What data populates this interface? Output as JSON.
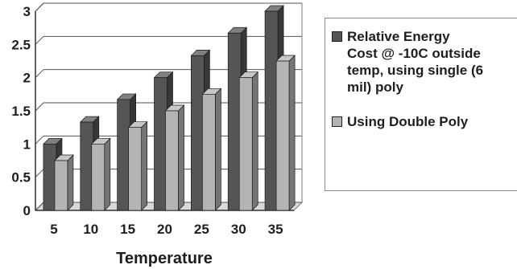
{
  "chart_data": {
    "type": "bar",
    "title": "",
    "xlabel": "Temperature",
    "ylabel": "",
    "categories": [
      "5",
      "10",
      "15",
      "20",
      "25",
      "30",
      "35"
    ],
    "yticks": [
      "0",
      "0.5",
      "1",
      "1.5",
      "2",
      "2.5",
      "3"
    ],
    "ylim": [
      0,
      3
    ],
    "grid": true,
    "legend_position": "right",
    "series": [
      {
        "name": "Relative Energy Cost @ -10C outside temp, using single (6 mil) poly",
        "values": [
          1.0,
          1.33,
          1.67,
          2.0,
          2.33,
          2.67,
          3.0
        ],
        "color": "#555555"
      },
      {
        "name": "Using Double Poly",
        "values": [
          0.75,
          1.0,
          1.25,
          1.5,
          1.75,
          2.0,
          2.25
        ],
        "color": "#b4b4b4"
      }
    ]
  },
  "legend": {
    "entries": [
      {
        "label": "Relative Energy\nCost @ -10C outside\ntemp, using single (6\nmil) poly",
        "color": "#555555"
      },
      {
        "label": "Using Double Poly",
        "color": "#b4b4b4"
      }
    ]
  }
}
